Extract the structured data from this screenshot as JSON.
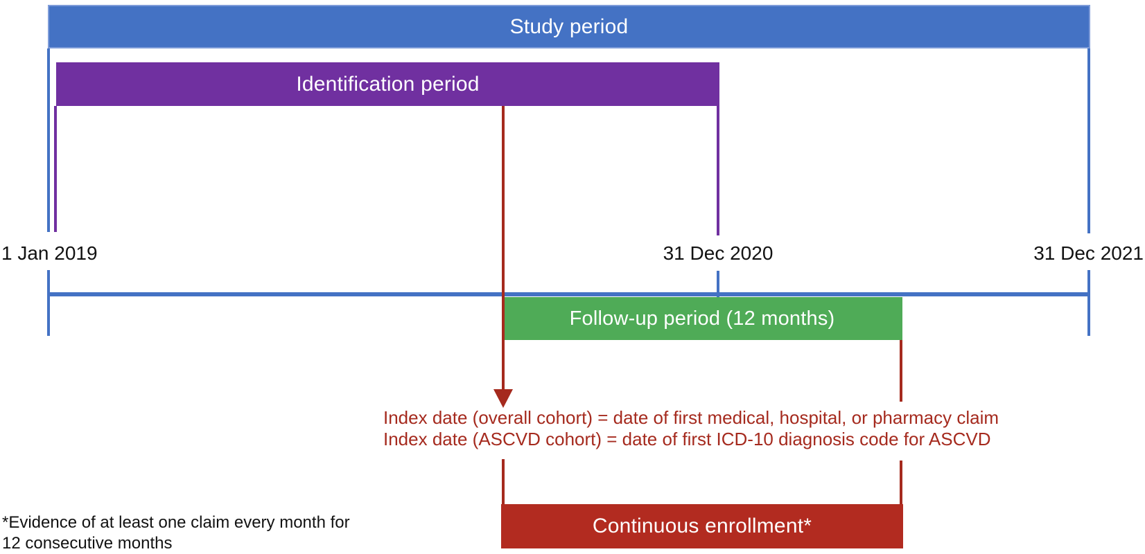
{
  "colors": {
    "blue": "#4472C4",
    "blue_border": "#7F9CD9",
    "purple": "#7030A0",
    "green": "#4FAB57",
    "dark_red": "#B22B20",
    "red_accent": "#A52A1E"
  },
  "bars": {
    "study": "Study period",
    "identification": "Identification period",
    "followup": "Follow-up period (12 months)",
    "enrollment": "Continuous enrollment*"
  },
  "dates": {
    "start": "1 Jan 2019",
    "mid": "31 Dec 2020",
    "end": "31 Dec 2021"
  },
  "annotations": {
    "index_line1": "Index date (overall cohort) = date of first medical, hospital, or pharmacy claim",
    "index_line2": "Index date (ASCVD cohort) = date of first ICD-10 diagnosis code for ASCVD",
    "footnote_line1": "*Evidence of at least one claim every month for",
    "footnote_line2": "12 consecutive months"
  }
}
